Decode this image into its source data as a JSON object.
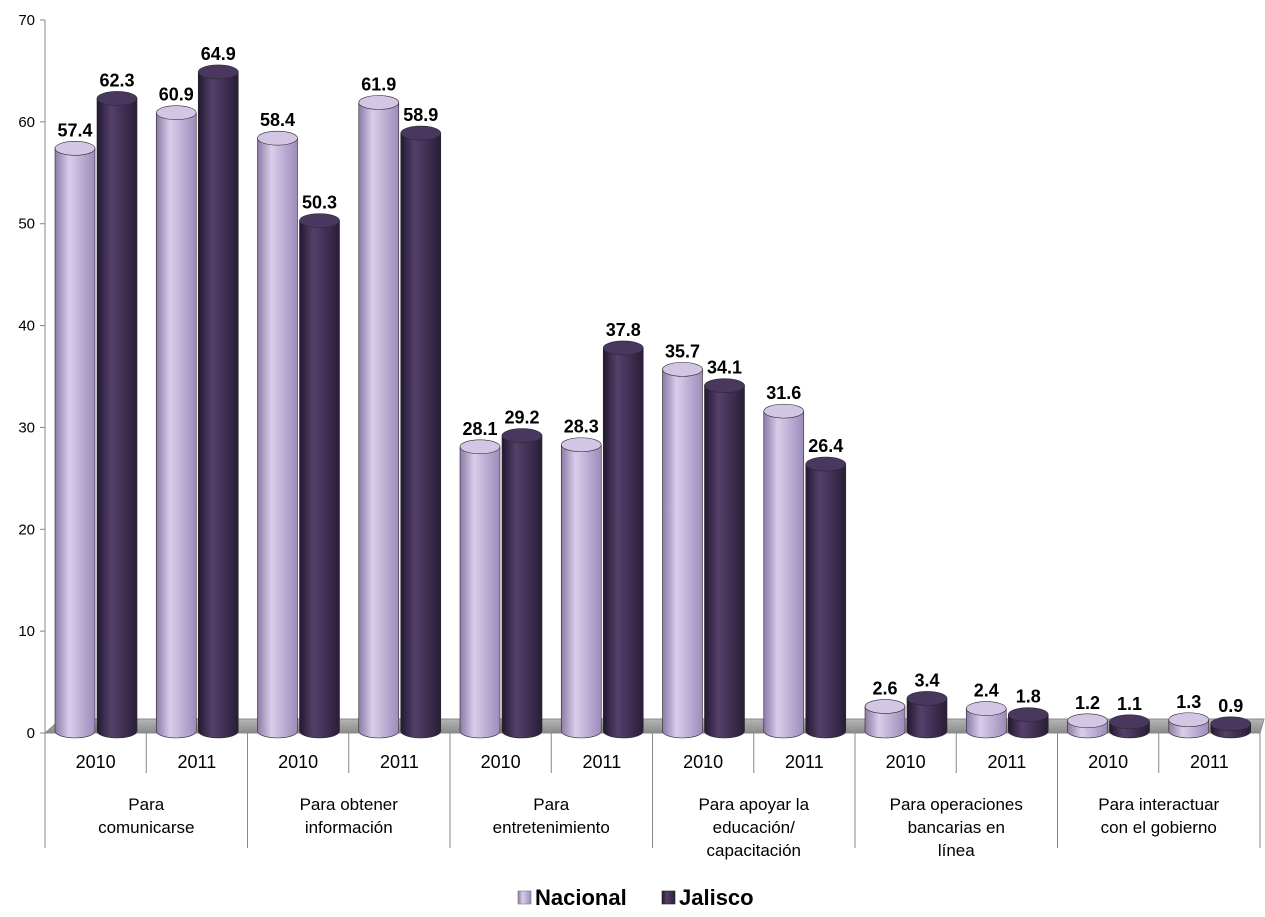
{
  "chart_data": {
    "type": "bar",
    "title": "",
    "xlabel": "",
    "ylabel": "",
    "ylim": [
      0,
      70
    ],
    "yticks": [
      0,
      10,
      20,
      30,
      40,
      50,
      60,
      70
    ],
    "grid": false,
    "legend_position": "bottom",
    "groups": [
      {
        "label": [
          "Para",
          "comunicarse"
        ],
        "years": [
          "2010",
          "2011"
        ]
      },
      {
        "label": [
          "Para obtener",
          "información"
        ],
        "years": [
          "2010",
          "2011"
        ]
      },
      {
        "label": [
          "Para",
          "entretenimiento"
        ],
        "years": [
          "2010",
          "2011"
        ]
      },
      {
        "label": [
          "Para apoyar la",
          "educación/",
          "capacitación"
        ],
        "years": [
          "2010",
          "2011"
        ]
      },
      {
        "label": [
          "Para operaciones",
          "bancarias en",
          "línea"
        ],
        "years": [
          "2010",
          "2011"
        ]
      },
      {
        "label": [
          "Para interactuar",
          "con el gobierno"
        ],
        "years": [
          "2010",
          "2011"
        ]
      }
    ],
    "series": [
      {
        "name": "Nacional",
        "color": "#b9a8d3",
        "values": [
          57.4,
          60.9,
          58.4,
          61.9,
          28.1,
          28.3,
          35.7,
          31.6,
          2.6,
          2.4,
          1.2,
          1.3
        ]
      },
      {
        "name": "Jalisco",
        "color": "#3d2b4f",
        "values": [
          62.3,
          64.9,
          50.3,
          58.9,
          29.2,
          37.8,
          34.1,
          26.4,
          3.4,
          1.8,
          1.1,
          0.9
        ]
      }
    ]
  }
}
